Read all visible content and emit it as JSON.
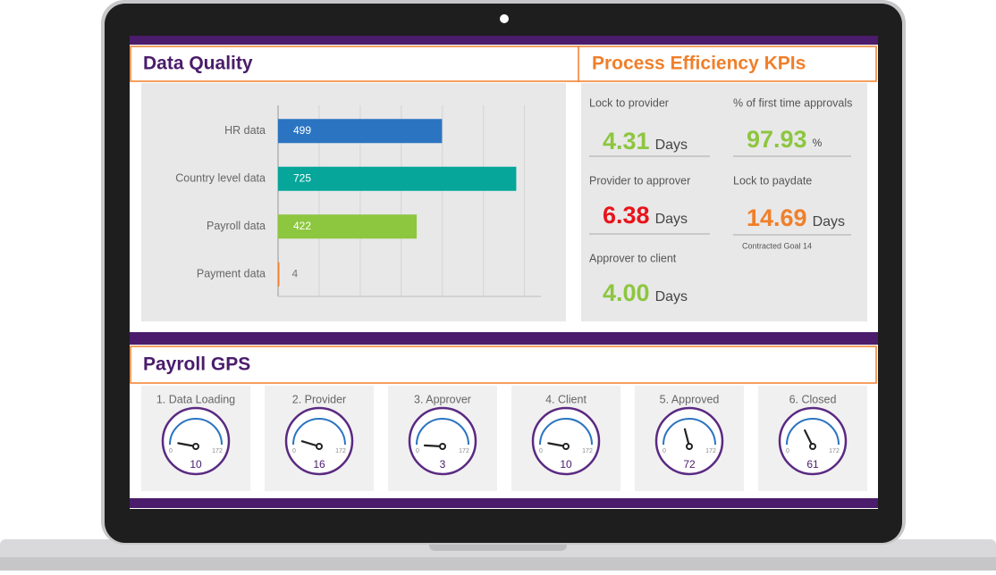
{
  "chart_data": {
    "type": "bar",
    "orientation": "horizontal",
    "title": "Data Quality",
    "categories": [
      "HR data",
      "Country level data",
      "Payroll data",
      "Payment data"
    ],
    "values": [
      499,
      725,
      422,
      4
    ],
    "colors": [
      "#2b74c1",
      "#06a69a",
      "#8dc63f",
      "#f07f2a"
    ],
    "xlim": [
      0,
      800
    ],
    "xticks": [
      0,
      125,
      250,
      375,
      500,
      625,
      750
    ],
    "grid": true
  },
  "kpis": {
    "title": "Process Efficiency KPIs",
    "items": [
      {
        "label": "Lock to provider",
        "value": "4.31",
        "unit": "Days",
        "color": "#8dc63f"
      },
      {
        "label": "% of first time approvals",
        "value": "97.93",
        "unit": "%",
        "color": "#8dc63f"
      },
      {
        "label": "Provider to approver",
        "value": "6.38",
        "unit": "Days",
        "color": "#e8141b"
      },
      {
        "label": "Lock to paydate",
        "value": "14.69",
        "unit": "Days",
        "color": "#f07f2a",
        "note": "Contracted Goal 14"
      },
      {
        "label": "Approver to client",
        "value": "4.00",
        "unit": "Days",
        "color": "#8dc63f"
      }
    ]
  },
  "payroll_gps": {
    "title": "Payroll GPS",
    "gauges": [
      {
        "label": "1. Data Loading",
        "value": 10,
        "min": 0,
        "max": 172
      },
      {
        "label": "2. Provider",
        "value": 16,
        "min": 0,
        "max": 172
      },
      {
        "label": "3. Approver",
        "value": 3,
        "min": 0,
        "max": 172
      },
      {
        "label": "4. Client",
        "value": 10,
        "min": 0,
        "max": 172
      },
      {
        "label": "5. Approved",
        "value": 72,
        "min": 0,
        "max": 172
      },
      {
        "label": "6. Closed",
        "value": 61,
        "min": 0,
        "max": 172
      }
    ]
  }
}
